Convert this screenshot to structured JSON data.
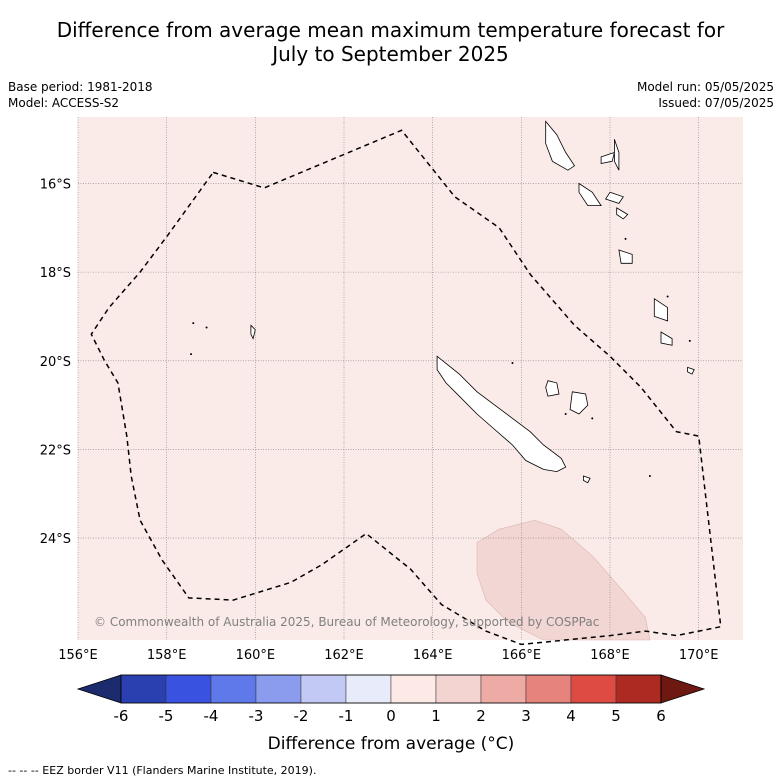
{
  "title": {
    "line1": "Difference from average mean maximum temperature forecast for",
    "line2": "July to September 2025"
  },
  "meta": {
    "base_period": "Base period: 1981-2018",
    "model": "Model: ACCESS-S2",
    "model_run": "Model run: 05/05/2025",
    "issued": "Issued: 07/05/2025"
  },
  "map": {
    "lon_range": [
      156,
      171
    ],
    "lat_range": [
      -26.3,
      -14.5
    ],
    "lon_ticks": [
      {
        "value": 156,
        "label": "156°E"
      },
      {
        "value": 158,
        "label": "158°E"
      },
      {
        "value": 160,
        "label": "160°E"
      },
      {
        "value": 162,
        "label": "162°E"
      },
      {
        "value": 164,
        "label": "164°E"
      },
      {
        "value": 166,
        "label": "166°E"
      },
      {
        "value": 168,
        "label": "168°E"
      },
      {
        "value": 170,
        "label": "170°E"
      }
    ],
    "lat_ticks": [
      {
        "value": -16,
        "label": "16°S"
      },
      {
        "value": -18,
        "label": "18°S"
      },
      {
        "value": -20,
        "label": "20°S"
      },
      {
        "value": -22,
        "label": "22°S"
      },
      {
        "value": -24,
        "label": "24°S"
      }
    ],
    "background_color": "#fbebe8",
    "anomaly_region_color": "#f2d6d3",
    "eez_border": [
      [
        159.05,
        -15.75
      ],
      [
        160.2,
        -16.1
      ],
      [
        163.3,
        -14.8
      ],
      [
        164.5,
        -16.3
      ],
      [
        165.5,
        -17.0
      ],
      [
        166.2,
        -18.05
      ],
      [
        167.2,
        -19.2
      ],
      [
        168.0,
        -19.9
      ],
      [
        168.7,
        -20.6
      ],
      [
        169.5,
        -21.6
      ],
      [
        170.0,
        -21.7
      ],
      [
        170.5,
        -26.0
      ],
      [
        169.5,
        -26.2
      ],
      [
        168.8,
        -26.1
      ],
      [
        168.0,
        -26.2
      ],
      [
        166.0,
        -26.4
      ],
      [
        165.2,
        -26.1
      ],
      [
        164.2,
        -25.5
      ],
      [
        163.5,
        -24.7
      ],
      [
        162.5,
        -23.9
      ],
      [
        161.5,
        -24.6
      ],
      [
        160.8,
        -25.0
      ],
      [
        159.5,
        -25.4
      ],
      [
        158.5,
        -25.35
      ],
      [
        157.9,
        -24.5
      ],
      [
        157.4,
        -23.6
      ],
      [
        157.2,
        -22.6
      ],
      [
        157.1,
        -21.7
      ],
      [
        156.9,
        -20.5
      ],
      [
        156.6,
        -20.0
      ],
      [
        156.3,
        -19.4
      ],
      [
        156.7,
        -18.8
      ],
      [
        157.4,
        -18.0
      ],
      [
        158.0,
        -17.2
      ],
      [
        159.05,
        -15.75
      ]
    ],
    "anomaly_region": [
      [
        165.0,
        -24.1
      ],
      [
        165.5,
        -23.8
      ],
      [
        166.3,
        -23.6
      ],
      [
        166.9,
        -23.8
      ],
      [
        167.6,
        -24.4
      ],
      [
        168.3,
        -25.2
      ],
      [
        168.8,
        -25.8
      ],
      [
        168.9,
        -26.3
      ],
      [
        166.5,
        -26.3
      ],
      [
        165.7,
        -25.9
      ],
      [
        165.2,
        -25.4
      ],
      [
        165.0,
        -24.8
      ]
    ],
    "coastlines": [
      [
        [
          164.1,
          -19.9
        ],
        [
          164.6,
          -20.3
        ],
        [
          165.0,
          -20.7
        ],
        [
          165.4,
          -21.0
        ],
        [
          165.8,
          -21.3
        ],
        [
          166.2,
          -21.6
        ],
        [
          166.5,
          -21.9
        ],
        [
          166.9,
          -22.2
        ],
        [
          167.0,
          -22.4
        ],
        [
          166.8,
          -22.5
        ],
        [
          166.5,
          -22.45
        ],
        [
          166.1,
          -22.25
        ],
        [
          165.8,
          -21.9
        ],
        [
          165.4,
          -21.55
        ],
        [
          165.0,
          -21.2
        ],
        [
          164.6,
          -20.8
        ],
        [
          164.3,
          -20.5
        ],
        [
          164.1,
          -20.2
        ],
        [
          164.1,
          -19.9
        ]
      ],
      [
        [
          166.6,
          -20.45
        ],
        [
          166.8,
          -20.5
        ],
        [
          166.85,
          -20.75
        ],
        [
          166.6,
          -20.8
        ],
        [
          166.55,
          -20.6
        ],
        [
          166.6,
          -20.45
        ]
      ],
      [
        [
          167.15,
          -20.7
        ],
        [
          167.45,
          -20.75
        ],
        [
          167.5,
          -21.0
        ],
        [
          167.3,
          -21.2
        ],
        [
          167.1,
          -21.1
        ],
        [
          167.15,
          -20.7
        ]
      ],
      [
        [
          167.4,
          -22.6
        ],
        [
          167.55,
          -22.65
        ],
        [
          167.5,
          -22.75
        ],
        [
          167.4,
          -22.7
        ],
        [
          167.4,
          -22.6
        ]
      ],
      [
        [
          166.55,
          -14.6
        ],
        [
          166.8,
          -14.9
        ],
        [
          167.0,
          -15.3
        ],
        [
          167.2,
          -15.6
        ],
        [
          167.05,
          -15.7
        ],
        [
          166.7,
          -15.5
        ],
        [
          166.55,
          -15.1
        ],
        [
          166.55,
          -14.6
        ]
      ],
      [
        [
          167.8,
          -15.4
        ],
        [
          168.1,
          -15.3
        ],
        [
          168.05,
          -15.5
        ],
        [
          167.8,
          -15.55
        ],
        [
          167.8,
          -15.4
        ]
      ],
      [
        [
          168.1,
          -15.0
        ],
        [
          168.2,
          -15.3
        ],
        [
          168.2,
          -15.7
        ],
        [
          168.1,
          -15.5
        ],
        [
          168.1,
          -15.0
        ]
      ],
      [
        [
          167.3,
          -16.0
        ],
        [
          167.6,
          -16.2
        ],
        [
          167.8,
          -16.5
        ],
        [
          167.5,
          -16.5
        ],
        [
          167.3,
          -16.2
        ],
        [
          167.3,
          -16.0
        ]
      ],
      [
        [
          168.0,
          -16.2
        ],
        [
          168.3,
          -16.3
        ],
        [
          168.2,
          -16.45
        ],
        [
          167.9,
          -16.35
        ],
        [
          168.0,
          -16.2
        ]
      ],
      [
        [
          168.15,
          -16.55
        ],
        [
          168.4,
          -16.7
        ],
        [
          168.3,
          -16.8
        ],
        [
          168.15,
          -16.7
        ],
        [
          168.15,
          -16.55
        ]
      ],
      [
        [
          168.2,
          -17.5
        ],
        [
          168.5,
          -17.6
        ],
        [
          168.5,
          -17.8
        ],
        [
          168.25,
          -17.8
        ],
        [
          168.2,
          -17.5
        ]
      ],
      [
        [
          169.0,
          -18.6
        ],
        [
          169.3,
          -18.8
        ],
        [
          169.3,
          -19.1
        ],
        [
          169.0,
          -19.0
        ],
        [
          169.0,
          -18.6
        ]
      ],
      [
        [
          169.15,
          -19.35
        ],
        [
          169.4,
          -19.5
        ],
        [
          169.4,
          -19.65
        ],
        [
          169.15,
          -19.6
        ],
        [
          169.15,
          -19.35
        ]
      ],
      [
        [
          169.75,
          -20.15
        ],
        [
          169.9,
          -20.2
        ],
        [
          169.85,
          -20.3
        ],
        [
          169.75,
          -20.25
        ],
        [
          169.75,
          -20.15
        ]
      ],
      [
        [
          159.9,
          -19.2
        ],
        [
          160.0,
          -19.3
        ],
        [
          159.95,
          -19.5
        ],
        [
          159.9,
          -19.4
        ],
        [
          159.9,
          -19.2
        ]
      ]
    ],
    "islets": [
      [
        158.6,
        -19.15
      ],
      [
        158.9,
        -19.25
      ],
      [
        158.55,
        -19.85
      ],
      [
        165.8,
        -20.05
      ],
      [
        168.35,
        -17.25
      ],
      [
        169.3,
        -18.55
      ],
      [
        169.8,
        -19.55
      ],
      [
        168.9,
        -22.6
      ],
      [
        167.0,
        -21.2
      ],
      [
        167.6,
        -21.3
      ]
    ],
    "copyright": "© Commonwealth of Australia 2025, Bureau of Meteorology, supported by COSPPac"
  },
  "colorbar": {
    "colors": [
      "#1c2a6e",
      "#2a3fb0",
      "#3a52e0",
      "#5f78ea",
      "#8b9cef",
      "#c3c9f5",
      "#e8ebfa",
      "#fde9e6",
      "#f3d4d1",
      "#eeaaa4",
      "#e5837c",
      "#de4b42",
      "#ad2a22",
      "#6e1812"
    ],
    "ticks": [
      "-6",
      "-5",
      "-4",
      "-3",
      "-2",
      "-1",
      "0",
      "1",
      "2",
      "3",
      "4",
      "5",
      "6"
    ],
    "label": "Difference from average (°C)"
  },
  "footnote": "--  --  -- EEZ border V11 (Flanders Marine Institute, 2019)."
}
